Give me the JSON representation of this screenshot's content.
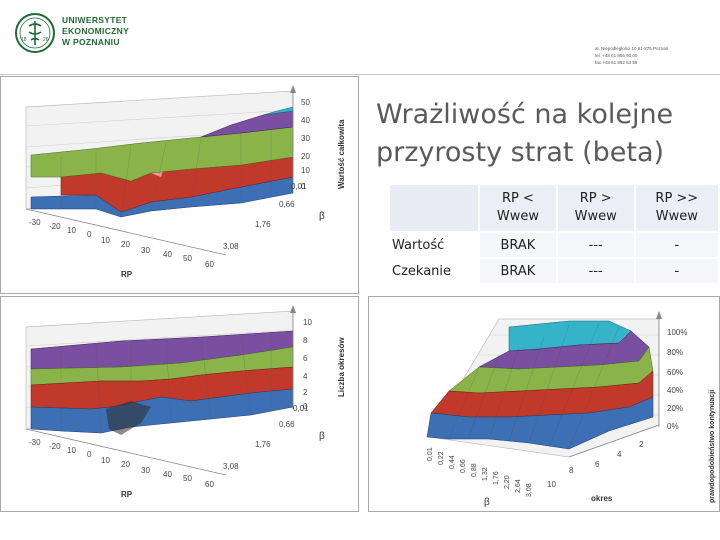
{
  "header": {
    "logo_line1": "UNIWERSYTET",
    "logo_line2": "EKONOMICZNY",
    "logo_line3": "W POZNANIU",
    "emblem_year_left": "18",
    "emblem_year_right": "26",
    "address_line1": "al. Niepodległości 10  61-875 Poznań",
    "address_line2": "tel. +48 61 856 90 00",
    "address_line3": "fax +48 61 852 53 59"
  },
  "title": "Wrażliwość na kolejne przyrosty strat (beta)",
  "table": {
    "columns": [
      "RP < Wwew",
      "RP > Wwew",
      "RP >> Wwew"
    ],
    "rows": [
      {
        "label": "Wartość",
        "cells": [
          "BRAK",
          "---",
          "-"
        ]
      },
      {
        "label": "Czekanie",
        "cells": [
          "BRAK",
          "---",
          "-"
        ]
      }
    ]
  },
  "chart1": {
    "z_axis_label": "Wartość całkowita",
    "z_ticks": [
      "50",
      "40",
      "30",
      "20",
      "10",
      "0"
    ],
    "beta_axis_label": "β",
    "beta_ticks": [
      "0,01",
      "0,66",
      "1,76",
      "3,08"
    ],
    "rp_axis_label": "RP",
    "rp_ticks": [
      "-30",
      "-20",
      "10",
      "0",
      "10",
      "20",
      "30",
      "40",
      "50",
      "60"
    ],
    "colors": [
      "#3d6fb4",
      "#c0392b",
      "#8ab44a",
      "#7a4ea0",
      "#35b3c9"
    ]
  },
  "chart2": {
    "z_axis_label": "Liczba okresów",
    "z_ticks": [
      "10",
      "8",
      "6",
      "4",
      "2",
      "0"
    ],
    "beta_axis_label": "β",
    "beta_ticks": [
      "0,01",
      "0,66",
      "1,76",
      "3,08"
    ],
    "rp_axis_label": "RP",
    "rp_ticks": [
      "-30",
      "-20",
      "10",
      "0",
      "10",
      "20",
      "30",
      "40",
      "50",
      "60"
    ],
    "colors": [
      "#3d6fb4",
      "#c0392b",
      "#8ab44a",
      "#7a4ea0",
      "#35b3c9"
    ]
  },
  "chart3": {
    "z_axis_label": "prawdopodobieństwo kontynuacji",
    "z_ticks": [
      "100%",
      "80%",
      "60%",
      "40%",
      "20%",
      "0%"
    ],
    "beta_axis_label": "β",
    "beta_ticks": [
      "0,01",
      "0,22",
      "0,44",
      "0,66",
      "0,88",
      "1,32",
      "1,76",
      "2,20",
      "2,64",
      "3,08"
    ],
    "okres_axis_label": "okres",
    "okres_ticks": [
      "10",
      "8",
      "6",
      "4",
      "2"
    ],
    "colors": [
      "#3d6fb4",
      "#c0392b",
      "#8ab44a",
      "#7a4ea0",
      "#35b3c9"
    ]
  }
}
